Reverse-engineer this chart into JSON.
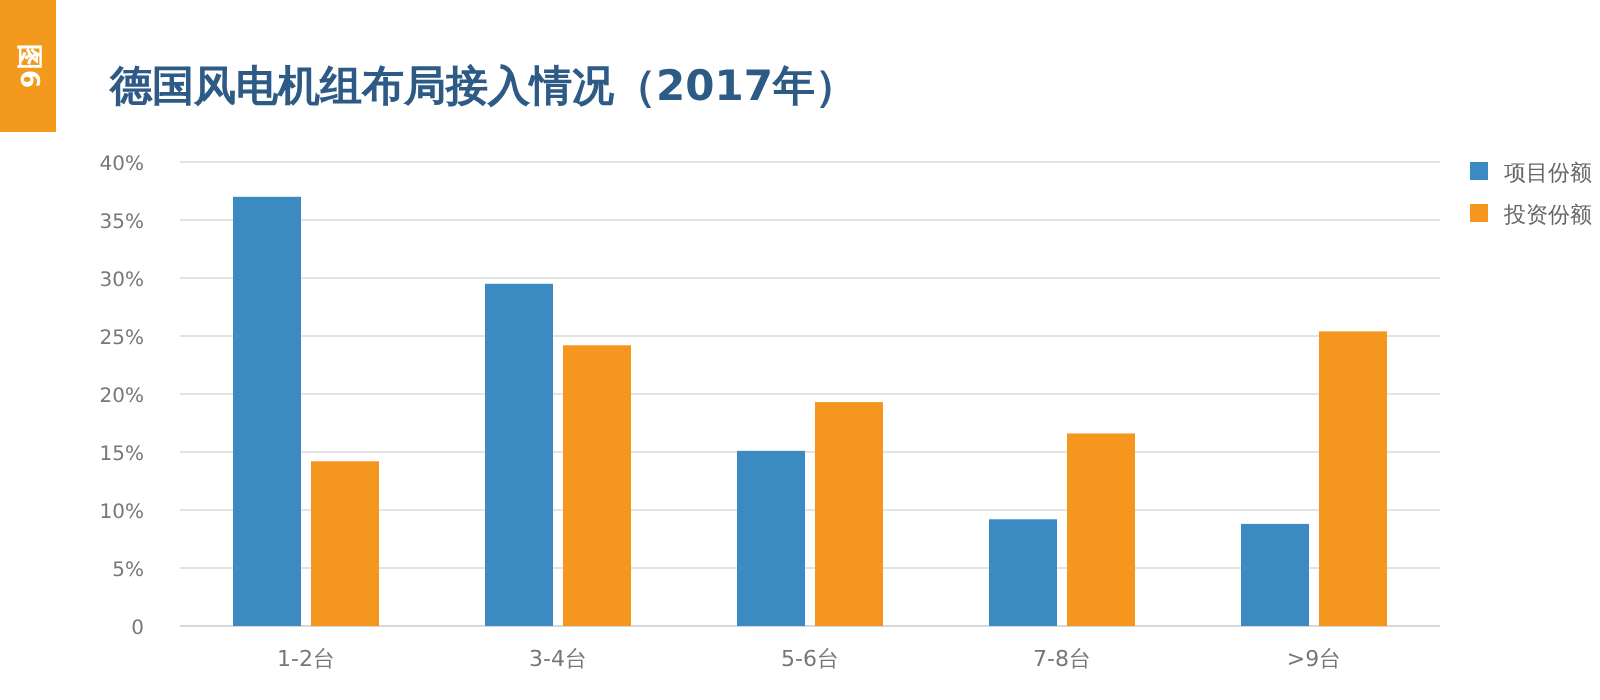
{
  "chart_data": {
    "type": "bar",
    "title": "德国风电机组布局接入情况（2017年）",
    "annotations": [
      "图6"
    ],
    "categories": [
      "1-2台",
      "3-4台",
      "5-6台",
      "7-8台",
      ">9台"
    ],
    "series": [
      {
        "name": "项目份额",
        "color": "#3b8bc2",
        "values": [
          37,
          29.5,
          15.1,
          9.2,
          8.8
        ]
      },
      {
        "name": "投资份额",
        "color": "#f5961f",
        "values": [
          14.2,
          24.2,
          19.3,
          16.6,
          25.4
        ]
      }
    ],
    "ylim": [
      0,
      40
    ],
    "yticks": [
      0,
      {
        "value": 5,
        "label": "5%"
      },
      {
        "value": 10,
        "label": "10%"
      },
      {
        "value": 15,
        "label": "15%"
      },
      {
        "value": 20,
        "label": "20%"
      },
      {
        "value": 25,
        "label": "25%"
      },
      {
        "value": 30,
        "label": "30%"
      },
      {
        "value": 35,
        "label": "35%"
      },
      {
        "value": 40,
        "label": "40%"
      }
    ],
    "grid": "y",
    "legend": "top right"
  }
}
